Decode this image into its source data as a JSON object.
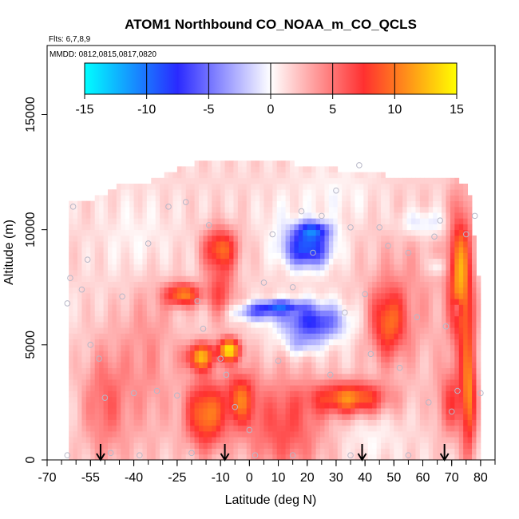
{
  "chart_data": {
    "type": "heatmap",
    "title": "ATOM1 Northbound CO_NOAA_m_CO_QCLS",
    "flights_note": "Flts: 6,7,8,9",
    "dates_note": "MMDD: 0812,0815,0817,0820",
    "xlabel": "Latitude (deg N)",
    "ylabel": "Altitude (m)",
    "xlim": [
      -70,
      85
    ],
    "ylim": [
      0,
      18000
    ],
    "x_ticks": [
      -70,
      -55,
      -40,
      -25,
      -10,
      0,
      10,
      20,
      30,
      40,
      50,
      60,
      70,
      80
    ],
    "x_tick_labels": [
      "-70",
      "-55",
      "-40",
      "-25",
      "-10",
      "0",
      "10",
      "20",
      "30",
      "40",
      "50",
      "60",
      "70",
      "80"
    ],
    "y_ticks": [
      0,
      5000,
      10000,
      15000
    ],
    "y_tick_labels": [
      "0",
      "5000",
      "10000",
      "15000"
    ],
    "colorbar": {
      "range": [
        -15,
        15
      ],
      "ticks": [
        -15,
        -10,
        -5,
        0,
        5,
        10,
        15
      ],
      "tick_labels": [
        "-15",
        "-10",
        "-5",
        "0",
        "5",
        "10",
        "15"
      ],
      "stops": [
        "#00ffff",
        "#2a2aff",
        "#ffffff",
        "#ff3030",
        "#ffff00"
      ]
    },
    "coverage_top": [
      [
        -62,
        11000
      ],
      [
        -58,
        11100
      ],
      [
        -50,
        11400
      ],
      [
        -45,
        11800
      ],
      [
        -35,
        11900
      ],
      [
        -25,
        12500
      ],
      [
        -15,
        12900
      ],
      [
        0,
        12900
      ],
      [
        20,
        12700
      ],
      [
        40,
        12300
      ],
      [
        55,
        12200
      ],
      [
        65,
        12200
      ],
      [
        72,
        12000
      ],
      [
        76,
        11800
      ],
      [
        80,
        7000
      ]
    ],
    "background_value": 1.5,
    "features": [
      {
        "lat": -35,
        "alt": 4500,
        "rx": 10,
        "ry": 4000,
        "value": 2.5
      },
      {
        "lat": 55,
        "alt": 7000,
        "rx": 15,
        "ry": 3500,
        "value": 2
      },
      {
        "lat": -10,
        "alt": 9200,
        "rx": 6,
        "ry": 900,
        "value": 8
      },
      {
        "lat": -23,
        "alt": 7200,
        "rx": 6,
        "ry": 500,
        "value": 9
      },
      {
        "lat": -10,
        "alt": 7300,
        "rx": 5,
        "ry": 1200,
        "value": 5
      },
      {
        "lat": -17,
        "alt": 4500,
        "rx": 5,
        "ry": 600,
        "value": 10
      },
      {
        "lat": -7,
        "alt": 4800,
        "rx": 4,
        "ry": 500,
        "value": 12
      },
      {
        "lat": -15,
        "alt": 2000,
        "rx": 7,
        "ry": 1500,
        "value": 9
      },
      {
        "lat": -3,
        "alt": 2700,
        "rx": 5,
        "ry": 1200,
        "value": 7
      },
      {
        "lat": 12,
        "alt": 1500,
        "rx": 14,
        "ry": 2200,
        "value": 5
      },
      {
        "lat": 35,
        "alt": 2700,
        "rx": 12,
        "ry": 700,
        "value": 9
      },
      {
        "lat": -50,
        "alt": 2500,
        "rx": 8,
        "ry": 2500,
        "value": 4
      },
      {
        "lat": 48,
        "alt": 6000,
        "rx": 6,
        "ry": 1500,
        "value": 7
      },
      {
        "lat": 73,
        "alt": 8000,
        "rx": 4,
        "ry": 3000,
        "value": 10
      },
      {
        "lat": 76,
        "alt": 3000,
        "rx": 2.5,
        "ry": 3000,
        "value": 8
      },
      {
        "lat": 70,
        "alt": 2500,
        "rx": 5,
        "ry": 1500,
        "value": 5
      },
      {
        "lat": 20,
        "alt": 9200,
        "rx": 8,
        "ry": 800,
        "value": -11
      },
      {
        "lat": 22,
        "alt": 10000,
        "rx": 6,
        "ry": 400,
        "value": -8
      },
      {
        "lat": 22,
        "alt": 6000,
        "rx": 11,
        "ry": 800,
        "value": -9
      },
      {
        "lat": 10,
        "alt": 6700,
        "rx": 8,
        "ry": 250,
        "value": -8
      },
      {
        "lat": 3,
        "alt": 6400,
        "rx": 9,
        "ry": 350,
        "value": -6
      },
      {
        "lat": 18,
        "alt": 5000,
        "rx": 6,
        "ry": 450,
        "value": -3
      },
      {
        "lat": 60,
        "alt": 10300,
        "rx": 9,
        "ry": 600,
        "value": -3
      },
      {
        "lat": 65,
        "alt": 8400,
        "rx": 3,
        "ry": 400,
        "value": -3
      },
      {
        "lat": 72,
        "alt": 6600,
        "rx": 1.5,
        "ry": 400,
        "value": -4
      },
      {
        "lat": -38,
        "alt": 9500,
        "rx": 12,
        "ry": 2000,
        "value": -1.5
      },
      {
        "lat": 30,
        "alt": 11500,
        "rx": 15,
        "ry": 1200,
        "value": -1.3
      },
      {
        "lat": 42,
        "alt": 1000,
        "rx": 10,
        "ry": 1000,
        "value": -1.2
      },
      {
        "lat": 10,
        "alt": 10500,
        "rx": 7,
        "ry": 1000,
        "value": -1
      }
    ],
    "sample_points": [
      [
        -62,
        7900
      ],
      [
        -63,
        6800
      ],
      [
        -61,
        11000
      ],
      [
        -58,
        7400
      ],
      [
        -56,
        8700
      ],
      [
        -55,
        5000
      ],
      [
        -52,
        4400
      ],
      [
        -50,
        2700
      ],
      [
        -48,
        300
      ],
      [
        -44,
        7100
      ],
      [
        -40,
        2900
      ],
      [
        -35,
        9400
      ],
      [
        -32,
        3000
      ],
      [
        -28,
        11000
      ],
      [
        -25,
        2800
      ],
      [
        -22,
        11200
      ],
      [
        -18,
        6900
      ],
      [
        -16,
        5700
      ],
      [
        -14,
        10200
      ],
      [
        -10,
        4400
      ],
      [
        -8,
        3700
      ],
      [
        -5,
        2300
      ],
      [
        0,
        1300
      ],
      [
        2,
        200
      ],
      [
        5,
        7700
      ],
      [
        8,
        9800
      ],
      [
        10,
        4300
      ],
      [
        15,
        7500
      ],
      [
        18,
        10800
      ],
      [
        22,
        9000
      ],
      [
        25,
        10600
      ],
      [
        28,
        3700
      ],
      [
        30,
        11700
      ],
      [
        33,
        6400
      ],
      [
        35,
        10100
      ],
      [
        38,
        12800
      ],
      [
        40,
        7200
      ],
      [
        42,
        4600
      ],
      [
        45,
        10100
      ],
      [
        48,
        9300
      ],
      [
        52,
        4000
      ],
      [
        55,
        9000
      ],
      [
        58,
        6200
      ],
      [
        62,
        2500
      ],
      [
        64,
        9700
      ],
      [
        66,
        10400
      ],
      [
        68,
        5800
      ],
      [
        70,
        2100
      ],
      [
        72,
        3000
      ],
      [
        75,
        9800
      ],
      [
        78,
        10600
      ],
      [
        80,
        2900
      ],
      [
        -38,
        200
      ],
      [
        -20,
        300
      ],
      [
        15,
        200
      ],
      [
        35,
        200
      ],
      [
        55,
        200
      ],
      [
        -63,
        200
      ]
    ],
    "arrows_lat": [
      -51.5,
      -8.5,
      39,
      67.5
    ]
  }
}
